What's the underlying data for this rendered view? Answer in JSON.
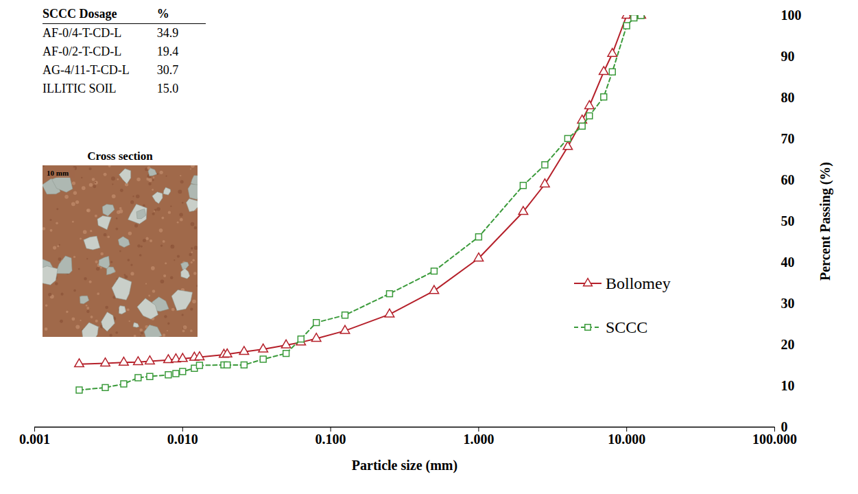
{
  "chart_data": {
    "type": "line",
    "x_label": "Particle size (mm)",
    "y_label": "Percent Passing (%)",
    "log": "x",
    "x": [
      0.002,
      0.003,
      0.004,
      0.005,
      0.006,
      0.008,
      0.009,
      0.01,
      0.012,
      0.013,
      0.019,
      0.02,
      0.026,
      0.035,
      0.05,
      0.063,
      0.08,
      0.125,
      0.25,
      0.5,
      1,
      2,
      2.8,
      4,
      5,
      5.6,
      7,
      8,
      10,
      11.2,
      12.5
    ],
    "series": [
      {
        "name": "Bollomey",
        "color": "#b5202a",
        "marker": "triangle",
        "line_style": "solid",
        "values": [
          15.3,
          15.5,
          15.7,
          15.8,
          16.0,
          16.3,
          16.5,
          16.6,
          16.9,
          17.0,
          17.6,
          17.7,
          18.3,
          18.9,
          19.9,
          20.6,
          21.5,
          23.4,
          27.4,
          33.1,
          41.0,
          52.3,
          59.0,
          68.1,
          74.5,
          78.0,
          86.3,
          90.7,
          100,
          100,
          100
        ]
      },
      {
        "name": "SCCC",
        "color": "#3a9a3a",
        "marker": "square",
        "line_style": "dashed",
        "values": [
          9.0,
          9.6,
          10.5,
          12.0,
          12.3,
          12.7,
          13.0,
          13.5,
          14.3,
          15.0,
          15.1,
          15.1,
          15.1,
          16.5,
          17.9,
          21.4,
          25.4,
          27.2,
          32.4,
          37.9,
          46.2,
          58.7,
          63.7,
          70.1,
          73.1,
          75.6,
          80.2,
          86.3,
          97.5,
          99.4,
          100
        ]
      }
    ],
    "xlim": [
      0.001,
      100
    ],
    "xticks": [
      0.001,
      {
        "value": 0.01,
        "label": "0.010"
      },
      {
        "value": 0.1,
        "label": "0.100"
      },
      {
        "value": 1,
        "label": "1.000"
      },
      {
        "value": 10,
        "label": "10.000"
      },
      {
        "value": 100,
        "label": "100.000"
      }
    ],
    "ylim": [
      0,
      100
    ],
    "yticks": [
      0,
      10,
      20,
      30,
      40,
      50,
      60,
      70,
      80,
      90,
      100
    ],
    "legend": "right",
    "table": {
      "header": [
        "SCCC Dosage",
        "%"
      ],
      "rows": [
        [
          "AF-0/4-T-CD-L",
          "34.9"
        ],
        [
          "AF-0/2-T-CD-L",
          "19.4"
        ],
        [
          "AG-4/11-T-CD-L",
          "30.7"
        ],
        [
          "ILLITIC SOIL",
          "15.0"
        ]
      ]
    },
    "inset": {
      "title": "Cross section",
      "scale_label": "10 mm"
    }
  }
}
